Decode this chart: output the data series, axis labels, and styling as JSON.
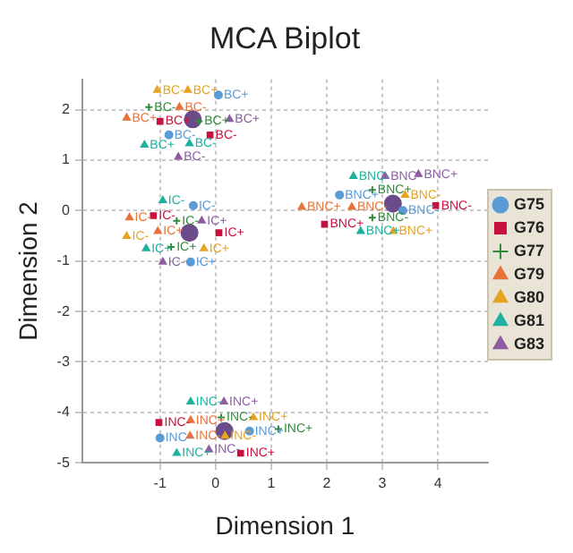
{
  "chart_data": {
    "type": "scatter",
    "title": "MCA Biplot",
    "xlabel": "Dimension 1",
    "ylabel": "Dimension 2",
    "xlim": [
      -2.4,
      4.9
    ],
    "xticks": [
      -1,
      0,
      1,
      2,
      3,
      4
    ],
    "ylim": [
      -5,
      2.6
    ],
    "yticks": [
      -5,
      -4,
      -3,
      -2,
      -1,
      0,
      1,
      2
    ],
    "grid": true,
    "legend": "right",
    "series": [
      {
        "name": "G75",
        "color": "#5b9bd5",
        "marker": "circle",
        "x": [
          0.05,
          -0.84,
          -0.45,
          -0.4,
          2.23,
          3.37,
          0.61,
          -1.0
        ],
        "values": [
          2.29,
          1.5,
          -1.02,
          0.1,
          0.31,
          0,
          -4.37,
          -4.51
        ],
        "value_labels": [
          "BC+",
          "BC-",
          "IC+",
          "IC-",
          "BNC+",
          "BNC-",
          "INC+",
          "INC-"
        ]
      },
      {
        "name": "G76",
        "color": "#c8103e",
        "marker": "square",
        "x": [
          -1.0,
          -0.1,
          0.06,
          -1.12,
          1.96,
          3.96,
          0.45,
          -1.02
        ],
        "values": [
          1.77,
          1.5,
          -0.44,
          -0.1,
          -0.27,
          0.1,
          -4.81,
          -4.2
        ],
        "value_labels": [
          "BC+",
          "BC-",
          "IC+",
          "IC-",
          "BNC+",
          "BNC-",
          "INC+",
          "INC-"
        ]
      },
      {
        "name": "G77",
        "color": "#2e8b3a",
        "marker": "cross",
        "x": [
          -0.3,
          -1.2,
          -0.8,
          -0.7,
          2.82,
          2.82,
          1.13,
          0.1
        ],
        "values": [
          1.77,
          2.05,
          -0.72,
          -0.2,
          0.41,
          -0.14,
          -4.33,
          -4.1
        ],
        "value_labels": [
          "BC+",
          "BC-",
          "IC+",
          "IC-",
          "BNC+",
          "BNC-",
          "INC+",
          "INC-"
        ]
      },
      {
        "name": "G79",
        "color": "#e8733a",
        "marker": "triangle",
        "x": [
          -1.6,
          -0.65,
          -1.04,
          -1.55,
          1.55,
          2.45,
          -0.45,
          -0.46
        ],
        "values": [
          1.84,
          2.05,
          -0.41,
          -0.14,
          0.07,
          0.07,
          -4.16,
          -4.47
        ],
        "value_labels": [
          "BC+",
          "BC-",
          "IC+",
          "IC-",
          "BNC+",
          "BNC-",
          "INC+",
          "INC-"
        ]
      },
      {
        "name": "G80",
        "color": "#e5a422",
        "marker": "triangle",
        "x": [
          -0.5,
          -1.05,
          -0.21,
          -1.6,
          3.2,
          3.41,
          0.68,
          0.17
        ],
        "values": [
          2.39,
          2.39,
          -0.75,
          -0.51,
          -0.41,
          0.31,
          -4.1,
          -4.47
        ],
        "value_labels": [
          "BC+",
          "BC-",
          "IC+",
          "IC-",
          "BNC+",
          "BNC-",
          "INC+",
          "INC-"
        ]
      },
      {
        "name": "G81",
        "color": "#1fb0a0",
        "marker": "triangle",
        "x": [
          -1.28,
          -0.47,
          -1.25,
          -0.95,
          2.61,
          2.48,
          -0.7,
          -0.45
        ],
        "values": [
          1.3,
          1.33,
          -0.75,
          0.2,
          -0.41,
          0.68,
          -4.81,
          -3.79
        ],
        "value_labels": [
          "BC+",
          "BC-",
          "IC+",
          "IC-",
          "BNC+",
          "BNC-",
          "INC+",
          "INC-"
        ]
      },
      {
        "name": "G83",
        "color": "#8e5ea2",
        "marker": "triangle",
        "x": [
          0.25,
          -0.67,
          -0.25,
          -0.95,
          3.65,
          3.05,
          0.15,
          -0.12
        ],
        "values": [
          1.81,
          1.06,
          -0.2,
          -1.02,
          0.72,
          0.68,
          -3.79,
          -4.74
        ],
        "value_labels": [
          "BC+",
          "BC-",
          "IC+",
          "IC-",
          "BNC+",
          "BNC-",
          "INC+",
          "INC-"
        ]
      },
      {
        "color": "#6b4c8a",
        "marker": "circle",
        "x": [
          -0.41,
          -0.47,
          3.19,
          0.16
        ],
        "values": [
          1.81,
          -0.44,
          0.14,
          -4.37
        ]
      }
    ]
  }
}
